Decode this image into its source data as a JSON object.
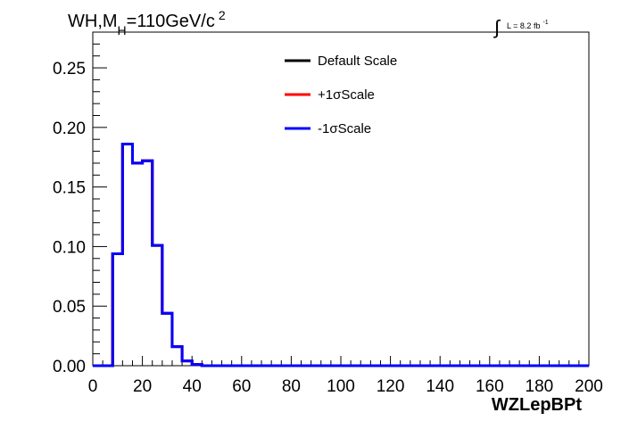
{
  "chart_data": {
    "type": "histogram",
    "title": "WH,M_H=110GeV/c^2",
    "title_parts": {
      "main": "WH,M",
      "sub": "H",
      "rest": "=110GeV/c",
      "sup": "2"
    },
    "lumi": {
      "integral_symbol": "∫",
      "text": "L = 8.2 fb",
      "sup": "-1"
    },
    "xlabel": "WZLepBPt",
    "ylabel": "",
    "xlim": [
      0,
      200
    ],
    "ylim": [
      0,
      0.28
    ],
    "x_ticks": [
      "0",
      "20",
      "40",
      "60",
      "80",
      "100",
      "120",
      "140",
      "160",
      "180",
      "200"
    ],
    "y_ticks": [
      "0.00",
      "0.05",
      "0.10",
      "0.15",
      "0.20",
      "0.25"
    ],
    "bin_width": 4,
    "bin_edges_start": 0,
    "legend_position": "top-center",
    "series": [
      {
        "name": "Default Scale",
        "color": "#000000",
        "values": [
          0,
          0,
          0.094,
          0.186,
          0.17,
          0.172,
          0.101,
          0.044,
          0.016,
          0.004,
          0.001,
          0,
          0,
          0,
          0,
          0,
          0,
          0,
          0,
          0,
          0,
          0,
          0,
          0,
          0,
          0,
          0,
          0,
          0,
          0,
          0,
          0,
          0,
          0,
          0,
          0,
          0,
          0,
          0,
          0,
          0,
          0,
          0,
          0,
          0,
          0,
          0,
          0,
          0,
          0
        ]
      },
      {
        "name": "+1σScale",
        "color": "#ff0000",
        "values": [
          0,
          0,
          0.094,
          0.186,
          0.17,
          0.172,
          0.101,
          0.044,
          0.016,
          0.004,
          0.001,
          0,
          0,
          0,
          0,
          0,
          0,
          0,
          0,
          0,
          0,
          0,
          0,
          0,
          0,
          0,
          0,
          0,
          0,
          0,
          0,
          0,
          0,
          0,
          0,
          0,
          0,
          0,
          0,
          0,
          0,
          0,
          0,
          0,
          0,
          0,
          0,
          0,
          0,
          0
        ]
      },
      {
        "name": "-1σScale",
        "color": "#0000ff",
        "values": [
          0,
          0,
          0.094,
          0.186,
          0.17,
          0.172,
          0.101,
          0.044,
          0.016,
          0.004,
          0.001,
          0,
          0,
          0,
          0,
          0,
          0,
          0,
          0,
          0,
          0,
          0,
          0,
          0,
          0,
          0,
          0,
          0,
          0,
          0,
          0,
          0,
          0,
          0,
          0,
          0,
          0,
          0,
          0,
          0,
          0,
          0,
          0,
          0,
          0,
          0,
          0,
          0,
          0,
          0
        ]
      }
    ]
  }
}
